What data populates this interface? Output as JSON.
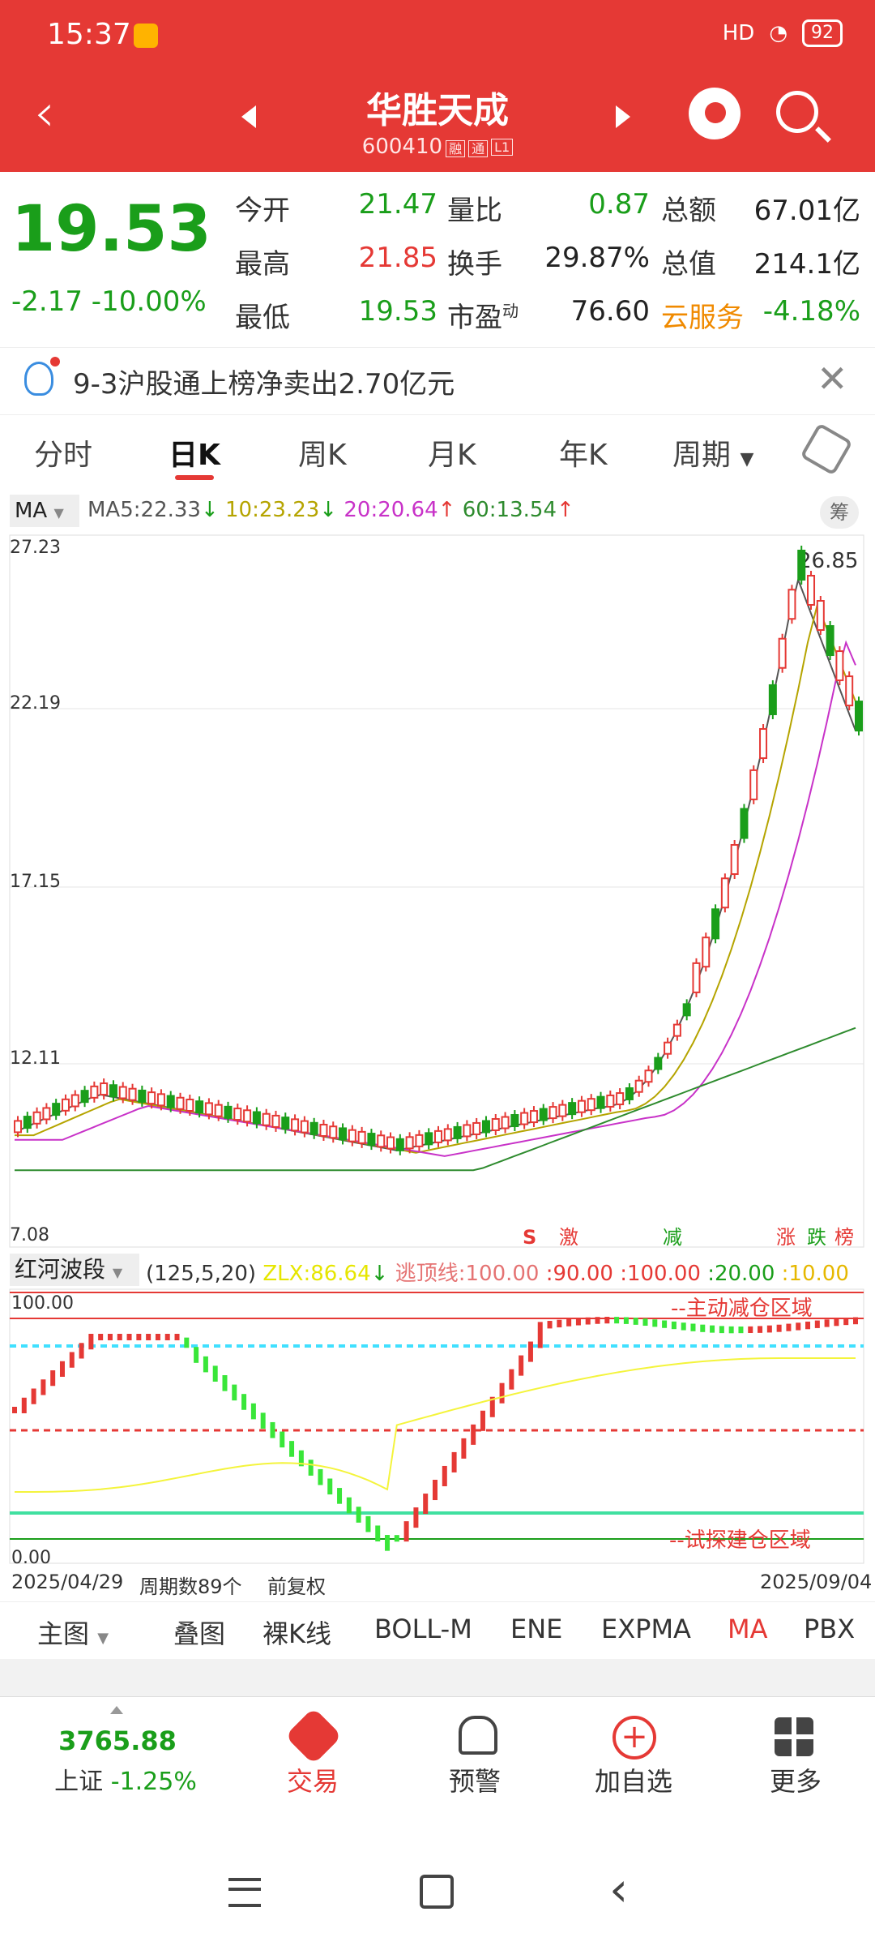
{
  "status": {
    "time": "15:37",
    "battery": "92",
    "signal": "HD"
  },
  "header": {
    "title": "华胜天成",
    "code": "600410",
    "tags": [
      "融",
      "通",
      "L1"
    ]
  },
  "quote": {
    "price": "19.53",
    "change": "-2.17",
    "change_pct": "-10.00%",
    "rows": [
      {
        "l1": "今开",
        "v1": "21.47",
        "l2": "量比",
        "v2": "0.87",
        "l3": "总额",
        "v3": "67.01亿"
      },
      {
        "l1": "最高",
        "v1": "21.85",
        "l2": "换手",
        "v2": "29.87%",
        "l3": "总值",
        "v3": "214.1亿"
      },
      {
        "l1": "最低",
        "v1": "19.53",
        "l2": "市盈",
        "l2sup": "动",
        "v2": "76.60",
        "l3": "云服务",
        "v3": "-4.18%"
      }
    ]
  },
  "notice": {
    "text": "9-3沪股通上榜净卖出2.70亿元"
  },
  "tabs": [
    "分时",
    "日K",
    "周K",
    "月K",
    "年K",
    "周期"
  ],
  "ma": {
    "selector": "MA",
    "ma5": "MA5:22.33",
    "ma10": "10:23.23",
    "ma20": "20:20.64",
    "ma60": "60:13.54",
    "chou": "筹"
  },
  "chart_data": {
    "type": "candlestick",
    "y_ticks": [
      "27.23",
      "22.19",
      "17.15",
      "12.11",
      "7.08"
    ],
    "high_label": "26.85",
    "marks": [
      "S",
      "激",
      "减",
      "涨",
      "跌",
      "榜"
    ],
    "start_date": "2025/04/29",
    "end_date": "2025/09/04",
    "period_count": "周期数89个",
    "adjust": "前复权"
  },
  "indicator": {
    "selector": "红河波段",
    "params": "(125,5,20)",
    "zlx": "ZLX:86.64",
    "escape": "逃顶线:100.00",
    "v90": ":90.00",
    "v100": ":100.00",
    "v20": ":20.00",
    "v10": ":10.00",
    "top_label": "100.00",
    "bottom_label": "0.00",
    "zone_top": "--主动减仓区域",
    "zone_bottom": "--试探建仓区域"
  },
  "toolbar": [
    "主图",
    "叠图",
    "裸K线",
    "BOLL-M",
    "ENE",
    "EXPMA",
    "MA",
    "PBX"
  ],
  "bottom_nav": {
    "index_value": "3765.88",
    "index_name": "上证",
    "index_pct": "-1.25%",
    "items": [
      "交易",
      "预警",
      "加自选",
      "更多"
    ]
  },
  "colors": {
    "red": "#e53935",
    "green": "#1a9e1a",
    "orange": "#f08a00"
  }
}
